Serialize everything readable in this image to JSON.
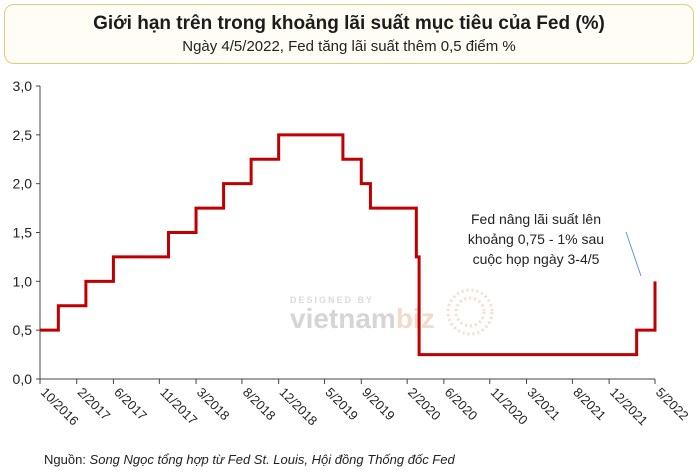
{
  "header": {
    "title": "Giới hạn trên trong khoảng lãi suất mục tiêu của Fed (%)",
    "subtitle": "Ngày 4/5/2022, Fed tăng lãi suất thêm 0,5 điểm %"
  },
  "source": {
    "label": "Nguồn: ",
    "text": "Song Ngọc tổng hợp từ Fed St. Louis, Hội đồng Thống đốc Fed"
  },
  "watermark": {
    "small": "DESIGNED BY",
    "brand_a": "vietnam",
    "brand_b": "biz"
  },
  "chart_data": {
    "type": "line",
    "title": "Giới hạn trên trong khoảng lãi suất mục tiêu của Fed (%)",
    "subtitle": "Ngày 4/5/2022, Fed tăng lãi suất thêm 0,5 điểm %",
    "xlabel": "",
    "ylabel": "",
    "ylim": [
      0,
      3.0
    ],
    "yticks": [
      "0,0",
      "0,5",
      "1,0",
      "1,5",
      "2,0",
      "2,5",
      "3,0"
    ],
    "xticks": [
      "10/2016",
      "2/2017",
      "6/2017",
      "11/2017",
      "3/2018",
      "8/2018",
      "12/2018",
      "5/2019",
      "9/2019",
      "2/2020",
      "6/2020",
      "11/2020",
      "3/2021",
      "8/2021",
      "12/2021",
      "5/2022"
    ],
    "grid": false,
    "line_color": "#c00000",
    "series": [
      {
        "step": "post",
        "points": [
          {
            "x": "10/2016",
            "y": 0.5
          },
          {
            "x": "12/2016",
            "y": 0.75
          },
          {
            "x": "3/2017",
            "y": 1.0
          },
          {
            "x": "6/2017",
            "y": 1.25
          },
          {
            "x": "12/2017",
            "y": 1.5
          },
          {
            "x": "3/2018",
            "y": 1.75
          },
          {
            "x": "6/2018",
            "y": 2.0
          },
          {
            "x": "9/2018",
            "y": 2.25
          },
          {
            "x": "12/2018",
            "y": 2.5
          },
          {
            "x": "7/2019",
            "y": 2.25
          },
          {
            "x": "9/2019",
            "y": 2.0
          },
          {
            "x": "10/2019",
            "y": 1.75
          },
          {
            "x": "3/2020 (đầu tháng)",
            "y": 1.25
          },
          {
            "x": "3/2020 (giữa tháng)",
            "y": 0.25
          },
          {
            "x": "3/2022",
            "y": 0.5
          },
          {
            "x": "5/2022",
            "y": 1.0
          }
        ]
      }
    ],
    "annotation": "Fed nâng lãi suất lên khoảng 0,75 - 1% sau cuộc họp ngày 3-4/5"
  }
}
